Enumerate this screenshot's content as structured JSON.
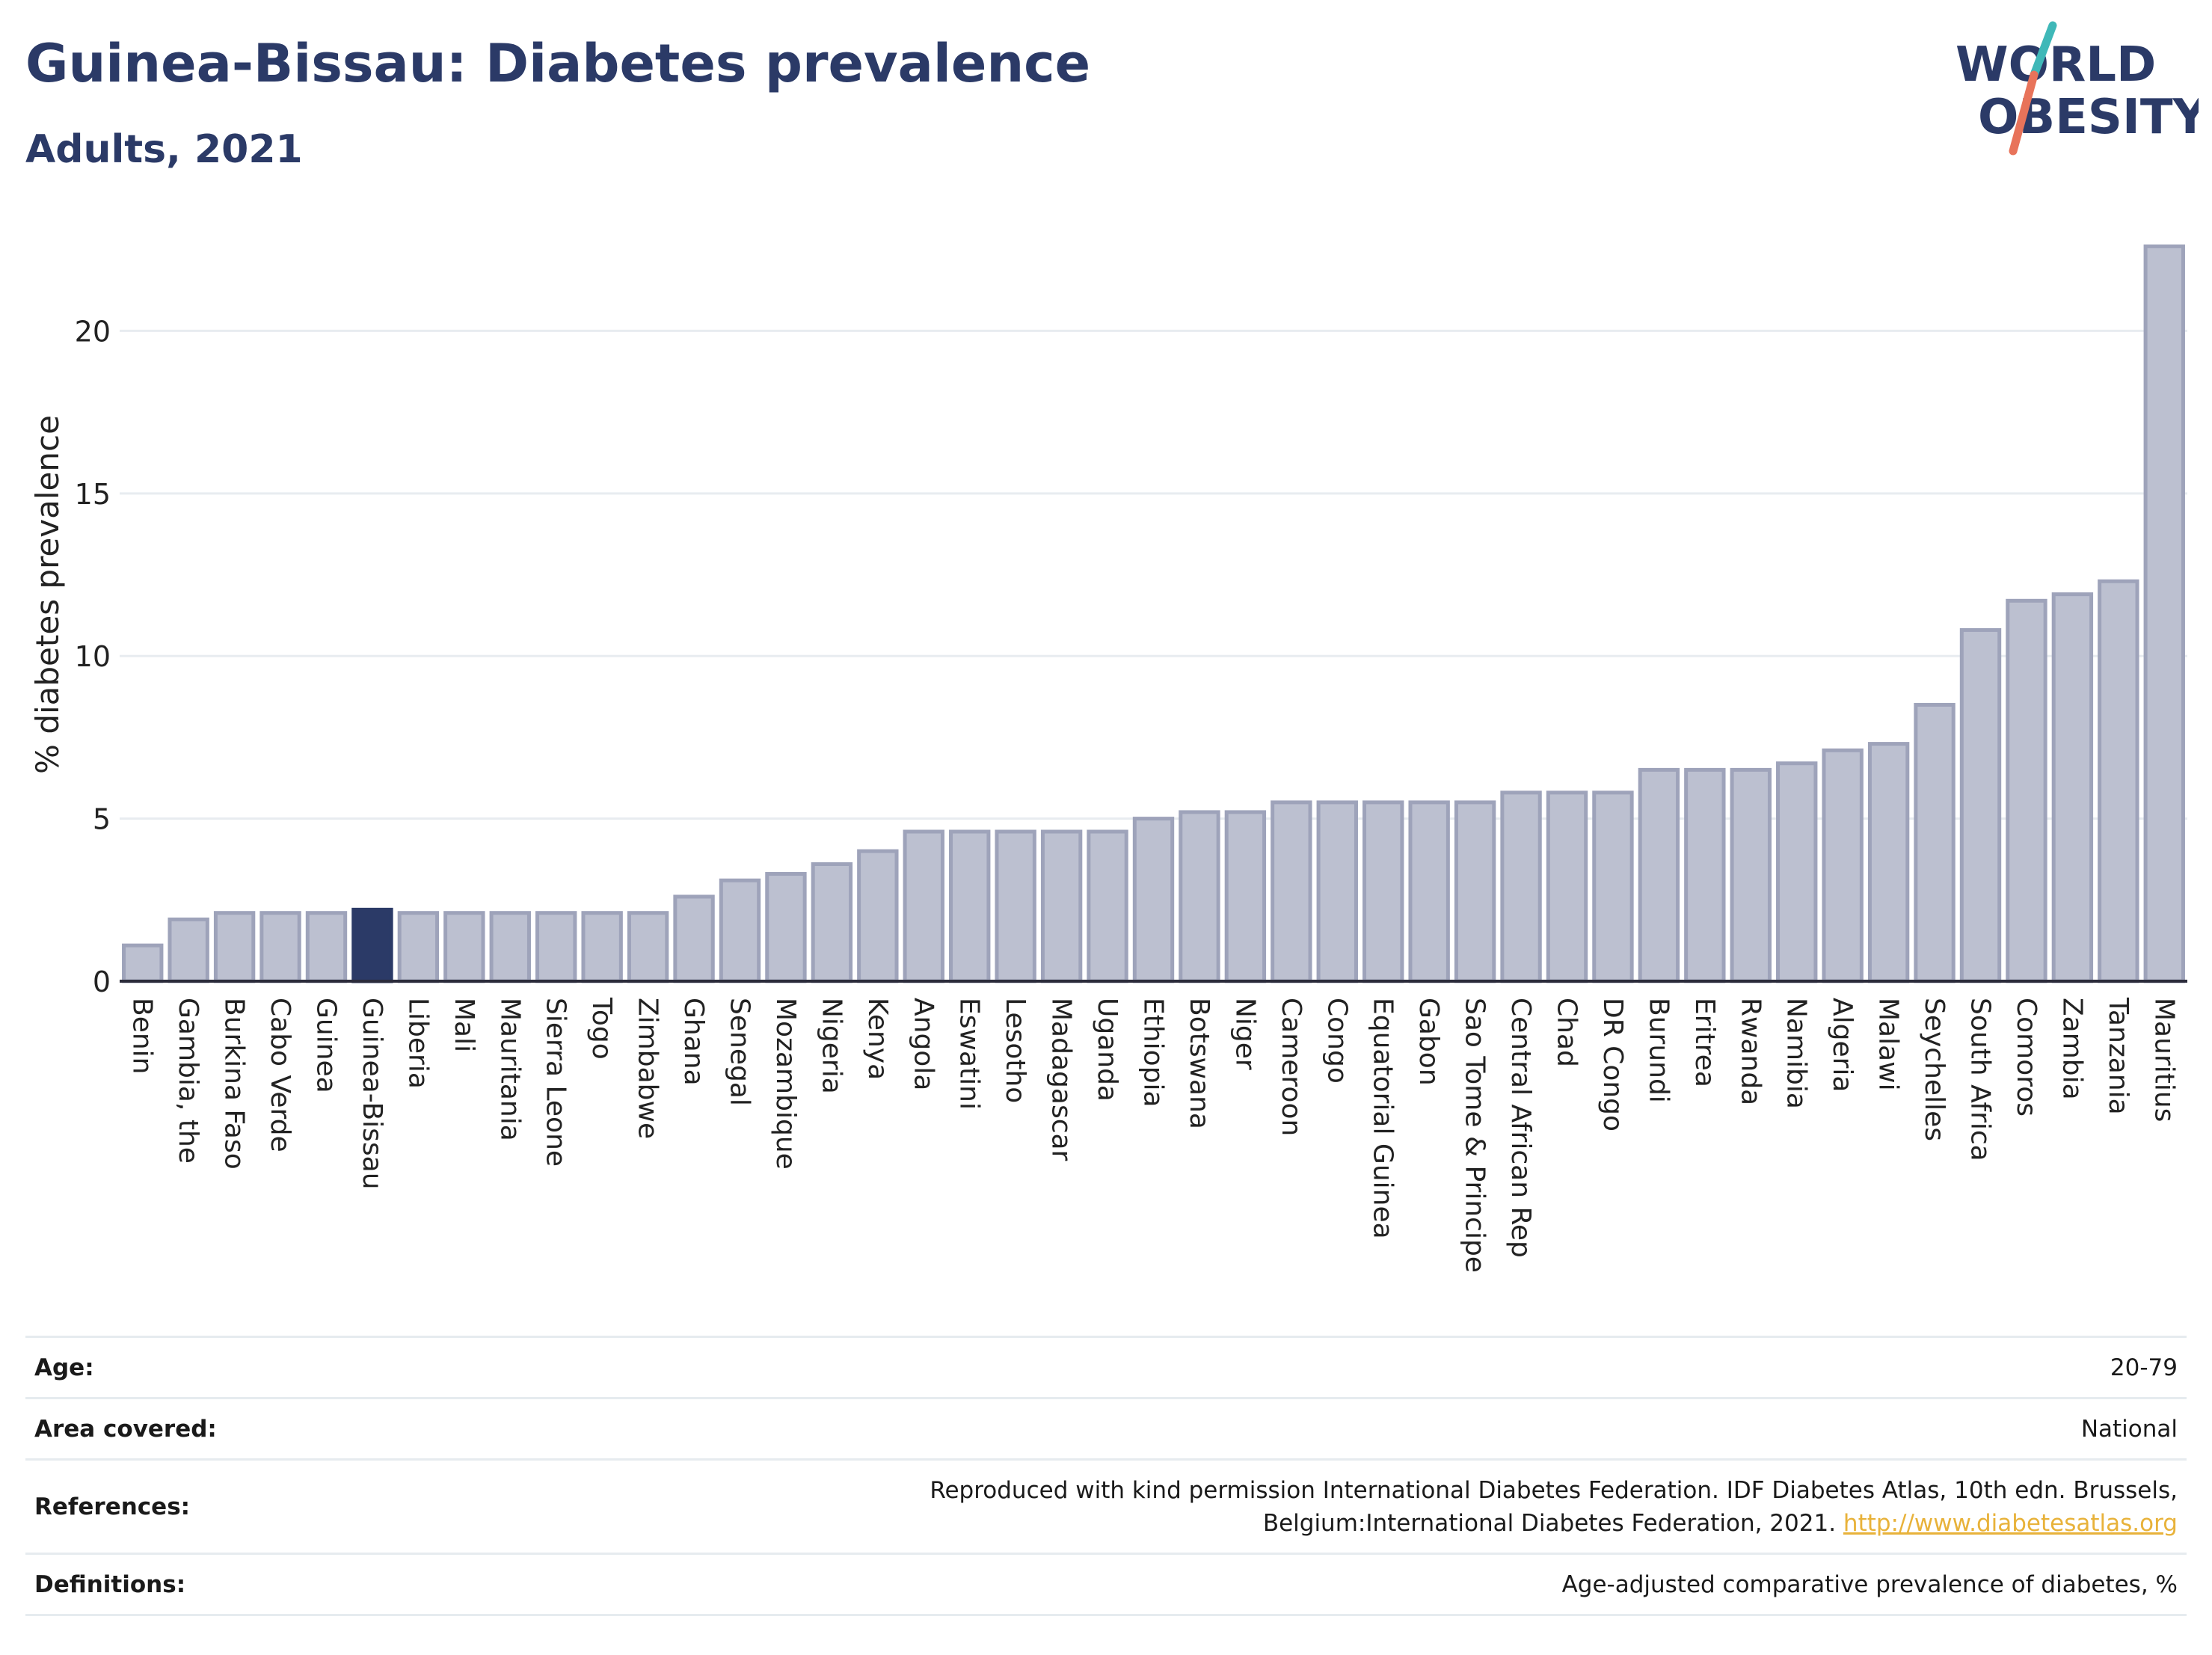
{
  "header": {
    "title": "Guinea-Bissau: Diabetes prevalence",
    "subtitle": "Adults, 2021"
  },
  "logo": {
    "line1": "WORLD",
    "line2": "OBESITY"
  },
  "colors": {
    "title": "#2b3a67",
    "highlight_bar": "#2b3a67",
    "bar_fill": "#bcc0d0",
    "bar_stroke": "#9ea3ba",
    "logo_teal": "#3fb8b8",
    "logo_coral": "#e8735a",
    "link": "#e8b23a"
  },
  "chart_data": {
    "type": "bar",
    "ylabel": "% diabetes prevalence",
    "xlabel": "",
    "ylim": [
      0,
      23
    ],
    "yticks": [
      0,
      5,
      10,
      15,
      20
    ],
    "grid": true,
    "highlight": "Guinea-Bissau",
    "categories": [
      "Benin",
      "Gambia, the",
      "Burkina Faso",
      "Cabo Verde",
      "Guinea",
      "Guinea-Bissau",
      "Liberia",
      "Mali",
      "Mauritania",
      "Sierra Leone",
      "Togo",
      "Zimbabwe",
      "Ghana",
      "Senegal",
      "Mozambique",
      "Nigeria",
      "Kenya",
      "Angola",
      "Eswatini",
      "Lesotho",
      "Madagascar",
      "Uganda",
      "Ethiopia",
      "Botswana",
      "Niger",
      "Cameroon",
      "Congo",
      "Equatorial Guinea",
      "Gabon",
      "Sao Tome & Principe",
      "Central African Rep",
      "Chad",
      "DR Congo",
      "Burundi",
      "Eritrea",
      "Rwanda",
      "Namibia",
      "Algeria",
      "Malawi",
      "Seychelles",
      "South Africa",
      "Comoros",
      "Zambia",
      "Tanzania",
      "Mauritius"
    ],
    "values": [
      1.1,
      1.9,
      2.1,
      2.1,
      2.1,
      2.2,
      2.1,
      2.1,
      2.1,
      2.1,
      2.1,
      2.1,
      2.6,
      3.1,
      3.3,
      3.6,
      4.0,
      4.6,
      4.6,
      4.6,
      4.6,
      4.6,
      5.0,
      5.2,
      5.2,
      5.5,
      5.5,
      5.5,
      5.5,
      5.5,
      5.8,
      5.8,
      5.8,
      6.5,
      6.5,
      6.5,
      6.7,
      7.1,
      7.3,
      8.5,
      10.8,
      11.7,
      11.9,
      12.3,
      22.6
    ]
  },
  "meta": {
    "age_label": "Age:",
    "age_value": "20-79",
    "area_label": "Area covered:",
    "area_value": "National",
    "references_label": "References:",
    "references_text": "Reproduced with kind permission International Diabetes Federation.  IDF Diabetes Atlas, 10th edn. Brussels, Belgium:International Diabetes Federation, 2021.",
    "references_link": "http://www.diabetesatlas.org",
    "definitions_label": "Definitions:",
    "definitions_value": "Age-adjusted comparative prevalence of diabetes, %"
  }
}
